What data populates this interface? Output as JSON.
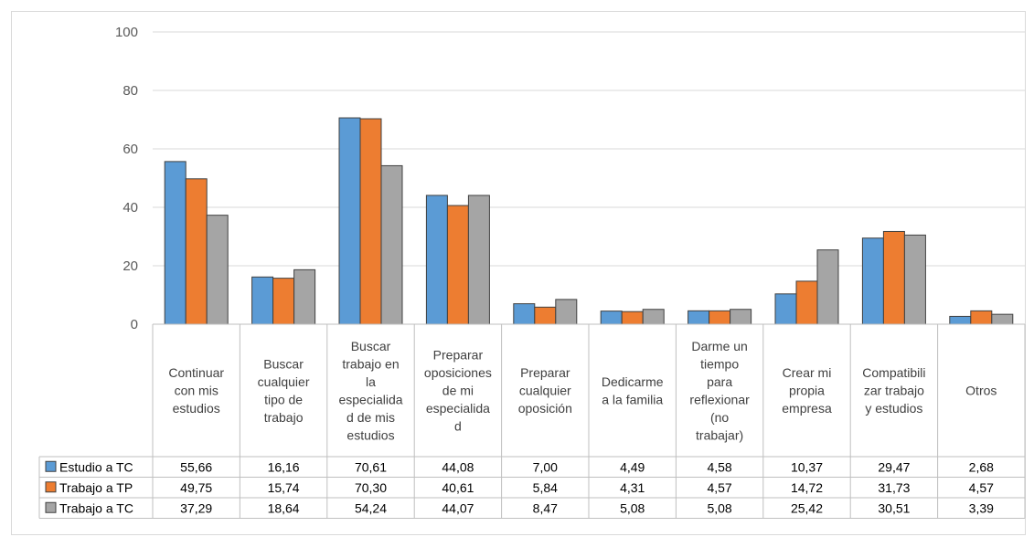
{
  "chart_data": {
    "type": "bar",
    "categories": [
      "Continuar con mis estudios",
      "Buscar cualquier tipo de trabajo",
      "Buscar trabajo en la especialidad de mis estudios",
      "Preparar oposiciones de mi especialidad",
      "Preparar cualquier oposición",
      "Dedicarme a la familia",
      "Darme un tiempo para reflexionar (no trabajar)",
      "Crear mi propia empresa",
      "Compatibilizar trabajo y estudios",
      "Otros"
    ],
    "category_lines": [
      [
        "Continuar",
        "con mis",
        "estudios"
      ],
      [
        "Buscar",
        "cualquier",
        "tipo de",
        "trabajo"
      ],
      [
        "Buscar",
        "trabajo en",
        "la",
        "especialida",
        "d de mis",
        "estudios"
      ],
      [
        "Preparar",
        "oposiciones",
        "de mi",
        "especialida",
        "d"
      ],
      [
        "Preparar",
        "cualquier",
        "oposición"
      ],
      [
        "Dedicarme",
        "a la familia"
      ],
      [
        "Darme un",
        "tiempo",
        "para",
        "reflexionar",
        "(no",
        "trabajar)"
      ],
      [
        "Crear mi",
        "propia",
        "empresa"
      ],
      [
        "Compatibili",
        "zar trabajo",
        "y estudios"
      ],
      [
        "Otros"
      ]
    ],
    "series": [
      {
        "name": "Estudio a TC",
        "color": "#5b9bd5",
        "values": [
          55.66,
          16.16,
          70.61,
          44.08,
          7.0,
          4.49,
          4.58,
          10.37,
          29.47,
          2.68
        ],
        "labels": [
          "55,66",
          "16,16",
          "70,61",
          "44,08",
          "7,00",
          "4,49",
          "4,58",
          "10,37",
          "29,47",
          "2,68"
        ]
      },
      {
        "name": "Trabajo a TP",
        "color": "#ed7d31",
        "values": [
          49.75,
          15.74,
          70.3,
          40.61,
          5.84,
          4.31,
          4.57,
          14.72,
          31.73,
          4.57
        ],
        "labels": [
          "49,75",
          "15,74",
          "70,30",
          "40,61",
          "5,84",
          "4,31",
          "4,57",
          "14,72",
          "31,73",
          "4,57"
        ]
      },
      {
        "name": "Trabajo a TC",
        "color": "#a5a5a5",
        "values": [
          37.29,
          18.64,
          54.24,
          44.07,
          8.47,
          5.08,
          5.08,
          25.42,
          30.51,
          3.39
        ],
        "labels": [
          "37,29",
          "18,64",
          "54,24",
          "44,07",
          "8,47",
          "5,08",
          "5,08",
          "25,42",
          "30,51",
          "3,39"
        ]
      }
    ],
    "ylim": [
      0,
      100
    ],
    "yticks": [
      "0",
      "20",
      "40",
      "60",
      "80",
      "100"
    ],
    "gridlines": true,
    "legend": "data-table-left",
    "title": "",
    "xlabel": "",
    "ylabel": ""
  }
}
